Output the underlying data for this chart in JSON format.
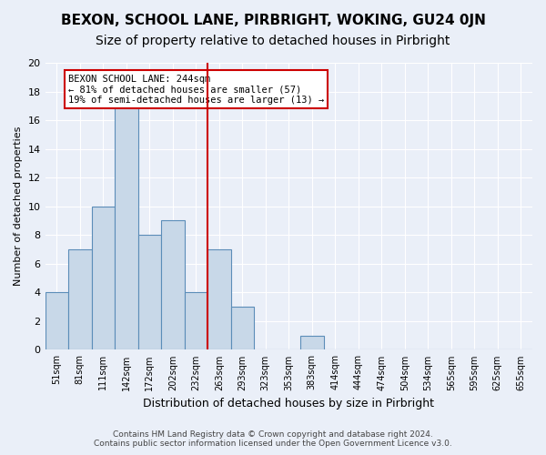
{
  "title": "BEXON, SCHOOL LANE, PIRBRIGHT, WOKING, GU24 0JN",
  "subtitle": "Size of property relative to detached houses in Pirbright",
  "xlabel": "Distribution of detached houses by size in Pirbright",
  "ylabel": "Number of detached properties",
  "footer_line1": "Contains HM Land Registry data © Crown copyright and database right 2024.",
  "footer_line2": "Contains public sector information licensed under the Open Government Licence v3.0.",
  "bin_labels": [
    "51sqm",
    "81sqm",
    "111sqm",
    "142sqm",
    "172sqm",
    "202sqm",
    "232sqm",
    "263sqm",
    "293sqm",
    "323sqm",
    "353sqm",
    "383sqm",
    "414sqm",
    "444sqm",
    "474sqm",
    "504sqm",
    "534sqm",
    "565sqm",
    "595sqm",
    "625sqm",
    "655sqm"
  ],
  "bin_counts": [
    4,
    7,
    10,
    17,
    8,
    9,
    4,
    7,
    3,
    0,
    0,
    1,
    0,
    0,
    0,
    0,
    0,
    0,
    0,
    0,
    0
  ],
  "bar_color": "#c8d8e8",
  "bar_edge_color": "#5b8db8",
  "vline_x": 6.5,
  "vline_color": "#cc0000",
  "annotation_text": "BEXON SCHOOL LANE: 244sqm\n← 81% of detached houses are smaller (57)\n19% of semi-detached houses are larger (13) →",
  "annotation_box_color": "#cc0000",
  "ylim": [
    0,
    20
  ],
  "yticks": [
    0,
    2,
    4,
    6,
    8,
    10,
    12,
    14,
    16,
    18,
    20
  ],
  "background_color": "#eaeff8",
  "plot_bg_color": "#eaeff8",
  "title_fontsize": 11,
  "subtitle_fontsize": 10
}
